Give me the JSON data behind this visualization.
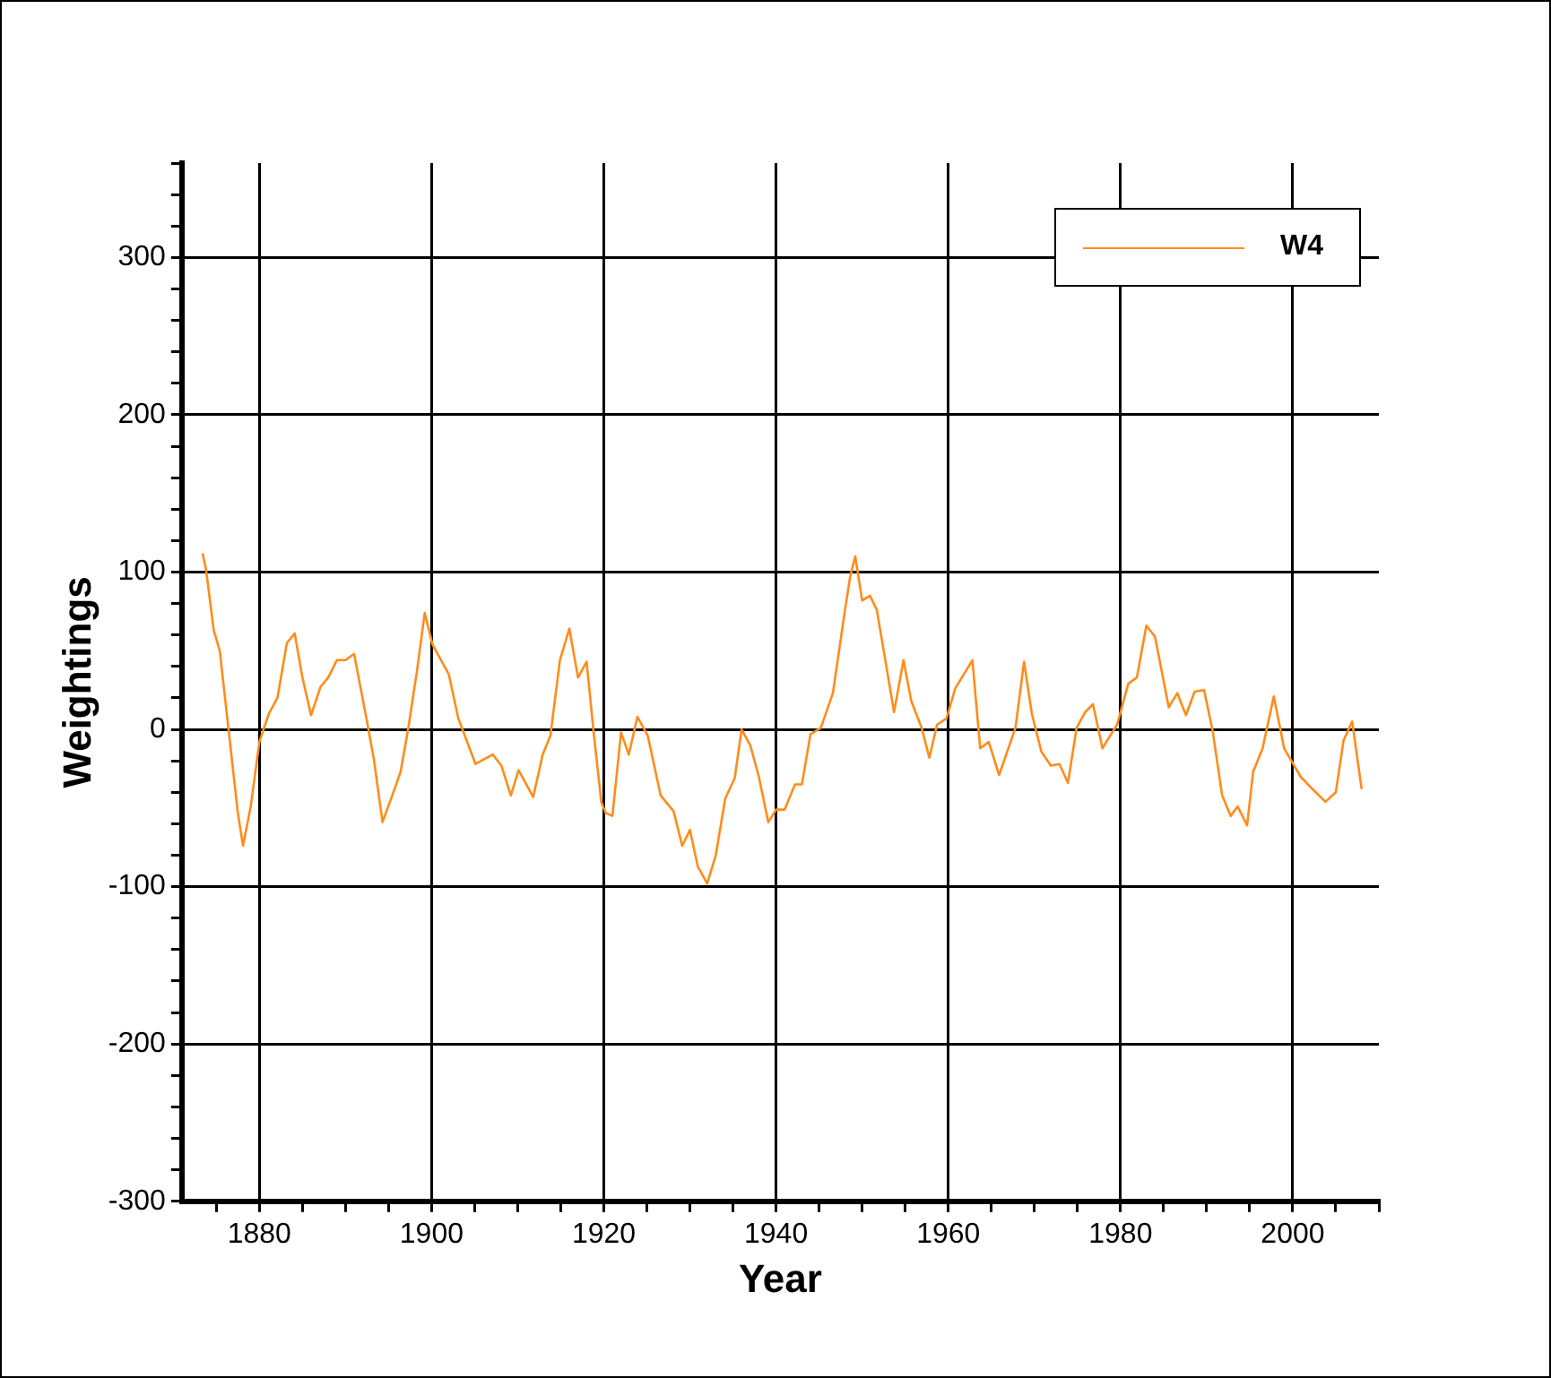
{
  "chart_data": {
    "type": "line",
    "xlabel": "Year",
    "ylabel": "Weightings",
    "xlim": [
      1871,
      2010
    ],
    "xticks": [
      {
        "value": 1875,
        "label": null
      },
      1880,
      {
        "value": 1885,
        "label": null
      },
      1900,
      {
        "value": 1890,
        "label": null
      },
      {
        "value": 1895,
        "label": null
      },
      {
        "value": 1905,
        "label": null
      },
      {
        "value": 1910,
        "label": null
      },
      {
        "value": 1915,
        "label": null
      },
      1920,
      {
        "value": 1925,
        "label": null
      },
      {
        "value": 1930,
        "label": null
      },
      {
        "value": 1935,
        "label": null
      },
      1940,
      {
        "value": 1945,
        "label": null
      },
      {
        "value": 1950,
        "label": null
      },
      {
        "value": 1955,
        "label": null
      },
      1960,
      {
        "value": 1965,
        "label": null
      },
      {
        "value": 1970,
        "label": null
      },
      {
        "value": 1975,
        "label": null
      },
      1980,
      {
        "value": 1985,
        "label": null
      },
      {
        "value": 1990,
        "label": null
      },
      {
        "value": 1995,
        "label": null
      },
      2000,
      {
        "value": 2005,
        "label": null
      },
      {
        "value": 2010,
        "label": null
      }
    ],
    "ylim": [
      -300,
      360
    ],
    "yticks": [
      -300,
      {
        "value": -280,
        "label": null
      },
      {
        "value": -260,
        "label": null
      },
      {
        "value": -240,
        "label": null
      },
      {
        "value": -220,
        "label": null
      },
      -200,
      {
        "value": -180,
        "label": null
      },
      {
        "value": -160,
        "label": null
      },
      {
        "value": -140,
        "label": null
      },
      {
        "value": -120,
        "label": null
      },
      -100,
      {
        "value": -80,
        "label": null
      },
      {
        "value": -60,
        "label": null
      },
      {
        "value": -40,
        "label": null
      },
      {
        "value": -20,
        "label": null
      },
      0,
      {
        "value": 20,
        "label": null
      },
      {
        "value": 40,
        "label": null
      },
      {
        "value": 60,
        "label": null
      },
      {
        "value": 80,
        "label": null
      },
      100,
      {
        "value": 120,
        "label": null
      },
      {
        "value": 140,
        "label": null
      },
      {
        "value": 160,
        "label": null
      },
      {
        "value": 180,
        "label": null
      },
      200,
      {
        "value": 220,
        "label": null
      },
      {
        "value": 240,
        "label": null
      },
      {
        "value": 260,
        "label": null
      },
      {
        "value": 280,
        "label": null
      },
      300,
      {
        "value": 320,
        "label": null
      },
      {
        "value": 340,
        "label": null
      },
      {
        "value": 360,
        "label": null
      }
    ],
    "grid": true,
    "legend": "top right",
    "marker": "none",
    "line_style": "solid",
    "series": [
      {
        "name": "W4",
        "color": "#ff8c1a",
        "x": [
          1873.4,
          1873.8,
          1874.7,
          1875.4,
          1876.4,
          1877.5,
          1878.1,
          1879,
          1880,
          1881.1,
          1882.1,
          1883.2,
          1884.1,
          1885,
          1886,
          1887.1,
          1888,
          1889,
          1890,
          1891,
          1892.5,
          1893.3,
          1894.3,
          1895.3,
          1896.4,
          1897.3,
          1898.3,
          1899.2,
          1900.1,
          1902,
          1903.1,
          1905.1,
          1907.1,
          1908.1,
          1909.2,
          1910.1,
          1911.8,
          1912.9,
          1913.8,
          1914.9,
          1916,
          1917,
          1918,
          1918.8,
          1919.7,
          1920.2,
          1921,
          1922,
          1922.9,
          1923.9,
          1925.1,
          1926.6,
          1928.1,
          1929.1,
          1930,
          1930.9,
          1932,
          1933,
          1934.1,
          1935.2,
          1936,
          1937,
          1938,
          1939.1,
          1940,
          1941,
          1942.2,
          1943,
          1944,
          1945.2,
          1946.6,
          1947.9,
          1948.6,
          1949.2,
          1950,
          1950.9,
          1951.7,
          1952.9,
          1953.7,
          1954.8,
          1955.7,
          1956.9,
          1957.8,
          1958.7,
          1959.8,
          1960.8,
          1961.8,
          1962.8,
          1963.7,
          1964.7,
          1965.9,
          1967.8,
          1968.8,
          1969.7,
          1970.8,
          1971.9,
          1972.9,
          1973.9,
          1974.9,
          1975.9,
          1976.8,
          1977.9,
          1979.6,
          1980.9,
          1981.9,
          1983,
          1984,
          1985.6,
          1986.6,
          1987.6,
          1988.6,
          1989.7,
          1990.7,
          1991.8,
          1992.8,
          1993.6,
          1994.7,
          1995.4,
          1996.5,
          1997.8,
          1999,
          2000.9,
          2002.3,
          2003.8,
          2005,
          2005.9,
          2006.9,
          2008
        ],
        "values": [
          112,
          102,
          63,
          50,
          1,
          -53,
          -74,
          -49,
          -8,
          10,
          20,
          55,
          61,
          33,
          9,
          27,
          33,
          44,
          44,
          48,
          5,
          -19,
          -59,
          -44,
          -27,
          1,
          37,
          74,
          54,
          35,
          7,
          -22,
          -16,
          -23,
          -42,
          -26,
          -43,
          -16,
          -4,
          44,
          64,
          33,
          43,
          -1,
          -46,
          -53,
          -55,
          -2,
          -16,
          8,
          -4,
          -42,
          -52,
          -74,
          -64,
          -87,
          -98,
          -80,
          -44,
          -31,
          0,
          -10,
          -30,
          -59,
          -51,
          -51,
          -35,
          -35,
          -3,
          1,
          23,
          72,
          97,
          110,
          82,
          85,
          76,
          37,
          11,
          44,
          18,
          1,
          -18,
          3,
          7,
          26,
          35,
          44,
          -12,
          -8,
          -29,
          1,
          43,
          10,
          -14,
          -23,
          -22,
          -34,
          1,
          11,
          16,
          -12,
          3,
          29,
          33,
          66,
          59,
          14,
          23,
          9,
          24,
          25,
          -1,
          -42,
          -55,
          -49,
          -61,
          -27,
          -12,
          21,
          -12,
          -30,
          -38,
          -46,
          -40,
          -7,
          5,
          -38
        ]
      }
    ]
  }
}
